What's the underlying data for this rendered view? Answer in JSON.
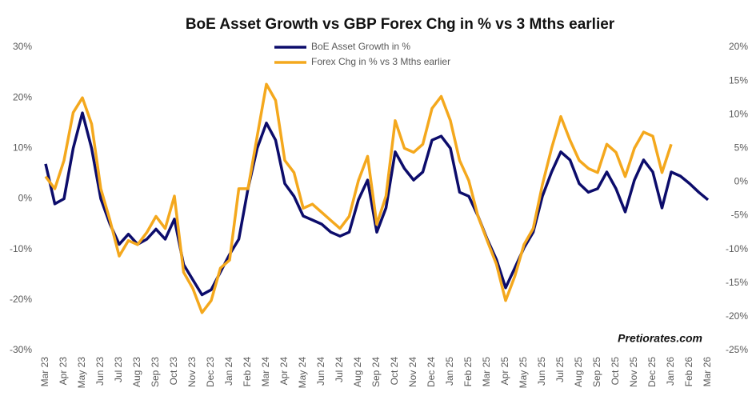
{
  "chart_data": {
    "type": "line",
    "title": "BoE Asset Growth vs GBP Forex Chg in % vs 3 Mths earlier",
    "annotation": "Pretiorates.com",
    "categories": [
      "Mar 23",
      null,
      "Apr 23",
      null,
      "May 23",
      null,
      "Jun 23",
      null,
      "Jul 23",
      null,
      "Aug 23",
      null,
      "Sep 23",
      null,
      "Oct 23",
      null,
      "Nov 23",
      null,
      "Dec 23",
      null,
      "Jan 24",
      null,
      "Feb 24",
      null,
      "Mar 24",
      null,
      "Apr 24",
      null,
      "May 24",
      null,
      "Jun 24",
      null,
      "Jul 24",
      null,
      "Aug 24",
      null,
      "Sep 24",
      null,
      "Oct 24",
      null,
      "Nov 24",
      null,
      "Dec 24",
      null,
      "Jan 25",
      null,
      "Feb 25",
      null,
      "Mar 25",
      null,
      "Apr 25",
      null,
      "May 25",
      null,
      "Jun 25",
      null,
      "Jul 25",
      null,
      "Aug 25",
      null,
      "Sep 25",
      null,
      "Oct 25",
      null,
      "Nov 25",
      null,
      "Dec 25",
      null,
      "Jan 26",
      null,
      "Feb 26",
      null,
      "Mar 26"
    ],
    "series": [
      {
        "name": "BoE Asset Growth in %",
        "color": "#0c0c6b",
        "axis": "y",
        "values": [
          6.9,
          -1,
          0,
          10,
          17,
          10,
          0,
          -5,
          -9,
          -7,
          -9,
          -8,
          -6,
          -8,
          -4,
          -13,
          -16,
          -19,
          -18,
          -14.5,
          -11,
          -8,
          2,
          10,
          15,
          11.6,
          3,
          0.5,
          -3.4,
          -4.2,
          -5,
          -6.6,
          -7.4,
          -6.6,
          -0.2,
          3.7,
          -6.6,
          -1.8,
          9.3,
          6,
          3.7,
          5.3,
          11.6,
          12.4,
          10,
          1.3,
          0.5,
          -3.4,
          -8,
          -12,
          -17.6,
          -13.7,
          -9.7,
          -6.6,
          0.5,
          5.3,
          9.3,
          7.7,
          3,
          1.3,
          2,
          5.3,
          2,
          -2.6,
          3.7,
          7.7,
          5.3,
          -1.8,
          5.3,
          4.5,
          3,
          1.3,
          -0.2
        ]
      },
      {
        "name": "Forex Chg in % vs 3 Mths earlier",
        "color": "#f4a81d",
        "axis": "y2",
        "values": [
          0.8,
          -1,
          3.2,
          10.3,
          12.5,
          8.6,
          -1,
          -5.7,
          -11,
          -8.7,
          -9.3,
          -7.5,
          -5.1,
          -6.9,
          -2.1,
          -13.4,
          -15.8,
          -19.4,
          -17.6,
          -12.8,
          -11.6,
          -1,
          -1,
          6.8,
          14.5,
          12.1,
          3.2,
          1.4,
          -3.9,
          -3.3,
          -4.5,
          -5.7,
          -6.9,
          -5.1,
          0.2,
          3.8,
          -6.3,
          -2.1,
          9.1,
          5,
          4.4,
          5.6,
          10.9,
          12.7,
          9.1,
          3.2,
          0.2,
          -5.1,
          -8.7,
          -12.2,
          -17.6,
          -14,
          -9.3,
          -6.9,
          -0.4,
          5,
          9.7,
          6.2,
          3.2,
          2,
          1.4,
          5.6,
          4.4,
          0.8,
          5,
          7.4,
          6.8,
          1.4,
          5.6,
          null,
          null,
          null,
          null
        ]
      }
    ],
    "ylim": [
      -30,
      30
    ],
    "yticks": [
      {
        "value": -30,
        "label": "-30%"
      },
      {
        "value": -20,
        "label": "-20%"
      },
      {
        "value": -10,
        "label": "-10%"
      },
      {
        "value": 0,
        "label": "0%"
      },
      {
        "value": 10,
        "label": "10%"
      },
      {
        "value": 20,
        "label": "20%"
      },
      {
        "value": 30,
        "label": "30%"
      }
    ],
    "y2lim": [
      -25,
      20
    ],
    "y2ticks": [
      {
        "value": -25,
        "label": "-25%"
      },
      {
        "value": -20,
        "label": "-20%"
      },
      {
        "value": -15,
        "label": "-15%"
      },
      {
        "value": -10,
        "label": "-10%"
      },
      {
        "value": -5,
        "label": "-5%"
      },
      {
        "value": 0,
        "label": "0%"
      },
      {
        "value": 5,
        "label": "5%"
      },
      {
        "value": 10,
        "label": "10%"
      },
      {
        "value": 15,
        "label": "15%"
      },
      {
        "value": 20,
        "label": "20%"
      }
    ],
    "legend": "top"
  }
}
